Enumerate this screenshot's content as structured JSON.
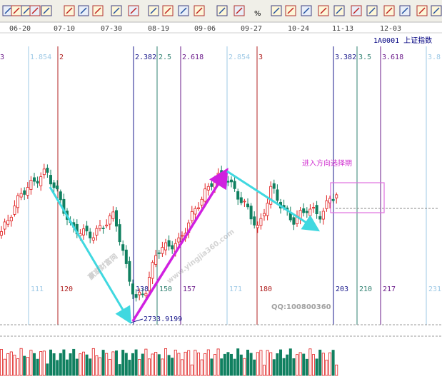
{
  "toolbar": {
    "percent_icon": "%"
  },
  "dates": [
    "06-20",
    "07-10",
    "07-30",
    "08-19",
    "09-06",
    "09-27",
    "10-24",
    "11-13",
    "12-03"
  ],
  "header": "1A0001 上证指数",
  "edge_label": "3",
  "fib_lines": [
    {
      "top": "1.854",
      "bottom": "111",
      "color": "#9ec9e6"
    },
    {
      "top": "2",
      "bottom": "120",
      "color": "#b02020"
    },
    {
      "top": "2.382",
      "bottom": "138",
      "color": "#1a1a8c"
    },
    {
      "top": "2.5",
      "bottom": "150",
      "color": "#2f8070"
    },
    {
      "top": "2.618",
      "bottom": "157",
      "color": "#6a1a8a"
    },
    {
      "top": "2.854",
      "bottom": "171",
      "color": "#9ec9e6"
    },
    {
      "top": "3",
      "bottom": "180",
      "color": "#b02020"
    },
    {
      "top": "3.382",
      "bottom": "203",
      "color": "#1a1a8c"
    },
    {
      "top": "3.5",
      "bottom": "210",
      "color": "#2f8070"
    },
    {
      "top": "3.618",
      "bottom": "217",
      "color": "#6a1a8a"
    },
    {
      "top": "3.8",
      "bottom": "231",
      "color": "#9ec9e6"
    }
  ],
  "annotation": "进入方向选择期",
  "low_label": "2733.9199",
  "watermark": {
    "brand": "赢家财富网",
    "site": "www.yingjia360.com",
    "qq": "QQ:100800360"
  }
}
